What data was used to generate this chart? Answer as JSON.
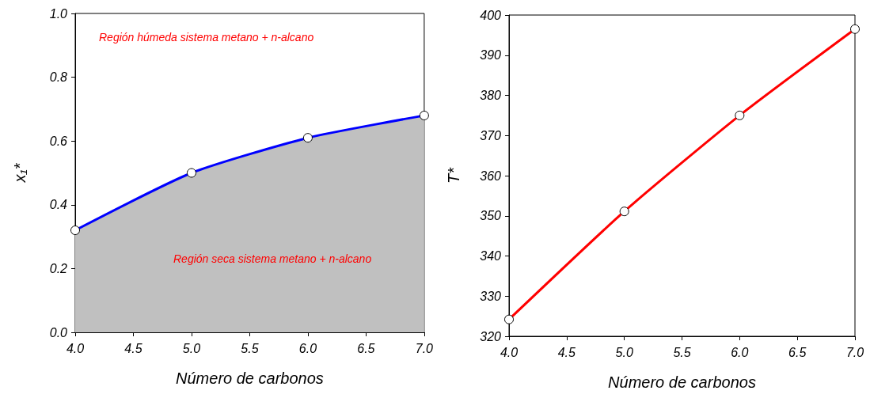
{
  "chart_data": [
    {
      "type": "area",
      "xlabel": "Número de carbonos",
      "ylabel": "x₁*",
      "x": [
        4,
        5,
        6,
        7
      ],
      "xlim": [
        4,
        7
      ],
      "xticks": [
        {
          "value": 4,
          "label": "4.0"
        },
        4.5,
        {
          "value": 5,
          "label": "5.0"
        },
        5.5,
        {
          "value": 6,
          "label": "6.0"
        },
        6.5,
        {
          "value": 7,
          "label": "7.0"
        }
      ],
      "ylim": [
        0,
        1
      ],
      "yticks": [
        {
          "value": 0,
          "label": "0.0"
        },
        0.2,
        0.4,
        0.6,
        0.8,
        {
          "value": 1,
          "label": "1.0"
        }
      ],
      "marker": "circle",
      "grid": false,
      "series": [
        {
          "color": "#0000ff",
          "values": [
            0.32,
            0.5,
            0.61,
            0.68
          ]
        }
      ],
      "annotations": [
        "Región húmeda sistema metano + n-alcano",
        "Región seca sistema metano + n-alcano"
      ]
    },
    {
      "type": "line",
      "xlabel": "Número de carbonos",
      "ylabel": "T*",
      "x": [
        4,
        5,
        6,
        7
      ],
      "xlim": [
        4,
        7
      ],
      "xticks": [
        {
          "value": 4,
          "label": "4.0"
        },
        4.5,
        {
          "value": 5,
          "label": "5.0"
        },
        5.5,
        {
          "value": 6,
          "label": "6.0"
        },
        6.5,
        {
          "value": 7,
          "label": "7.0"
        }
      ],
      "ylim": [
        320,
        400
      ],
      "yticks": [
        320,
        330,
        340,
        350,
        360,
        370,
        380,
        390,
        400
      ],
      "marker": "circle",
      "grid": false,
      "series": [
        {
          "color": "#ff0000",
          "values": [
            324.2,
            351.1,
            375.0,
            396.5
          ]
        }
      ]
    }
  ]
}
